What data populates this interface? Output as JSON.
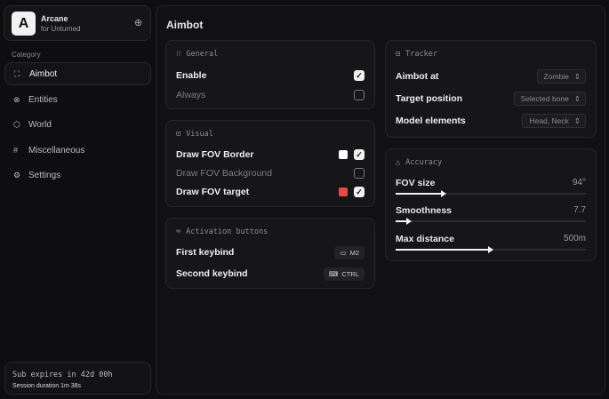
{
  "brand": {
    "logo": "A",
    "name": "Arcane",
    "subtitle": "for Unturned"
  },
  "sidebar": {
    "category_label": "Category",
    "items": [
      {
        "label": "Aimbot",
        "icon": "crosshair-icon",
        "active": true
      },
      {
        "label": "Entities",
        "icon": "entities-icon"
      },
      {
        "label": "World",
        "icon": "cube-icon"
      },
      {
        "label": "Miscellaneous",
        "icon": "grid-icon"
      },
      {
        "label": "Settings",
        "icon": "gear-icon"
      }
    ]
  },
  "footer": {
    "sub": "Sub expires in 42d 00h",
    "session": "Session duration 1m 38s"
  },
  "main": {
    "title": "Aimbot"
  },
  "general": {
    "title": "General",
    "rows": [
      {
        "label": "Enable",
        "checked": true
      },
      {
        "label": "Always",
        "checked": false
      }
    ]
  },
  "visual": {
    "title": "Visual",
    "rows": [
      {
        "label": "Draw FOV Border",
        "checked": true,
        "color": "#ffffff"
      },
      {
        "label": "Draw FOV Background",
        "checked": false
      },
      {
        "label": "Draw FOV target",
        "checked": true,
        "color": "#e84848"
      }
    ]
  },
  "activation": {
    "title": "Activation buttons",
    "rows": [
      {
        "label": "First keybind",
        "key": "M2"
      },
      {
        "label": "Second keybind",
        "key": "CTRL"
      }
    ]
  },
  "tracker": {
    "title": "Tracker",
    "rows": [
      {
        "label": "Aimbot at",
        "value": "Zombie"
      },
      {
        "label": "Target position",
        "value": "Selected bone"
      },
      {
        "label": "Model elements",
        "value": "Head, Neck"
      }
    ]
  },
  "accuracy": {
    "title": "Accuracy",
    "sliders": [
      {
        "label": "FOV size",
        "value": "94°",
        "fraction": 0.25
      },
      {
        "label": "Smoothness",
        "value": "7.7",
        "fraction": 0.07
      },
      {
        "label": "Max distance",
        "value": "500m",
        "fraction": 0.5
      }
    ]
  }
}
